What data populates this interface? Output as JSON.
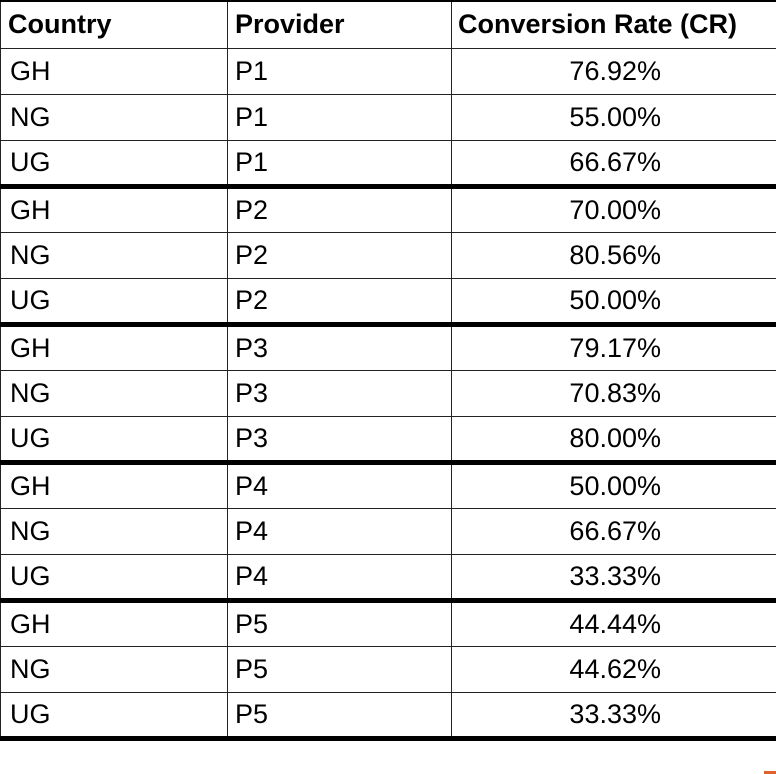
{
  "table": {
    "headers": [
      "Country",
      "Provider",
      "Conversion Rate (CR)"
    ],
    "rows": [
      {
        "country": "GH",
        "provider": "P1",
        "cr": "76.92%"
      },
      {
        "country": "NG",
        "provider": "P1",
        "cr": "55.00%"
      },
      {
        "country": "UG",
        "provider": "P1",
        "cr": "66.67%"
      },
      {
        "country": "GH",
        "provider": "P2",
        "cr": "70.00%"
      },
      {
        "country": "NG",
        "provider": "P2",
        "cr": "80.56%"
      },
      {
        "country": "UG",
        "provider": "P2",
        "cr": "50.00%"
      },
      {
        "country": "GH",
        "provider": "P3",
        "cr": "79.17%"
      },
      {
        "country": "NG",
        "provider": "P3",
        "cr": "70.83%"
      },
      {
        "country": "UG",
        "provider": "P3",
        "cr": "80.00%"
      },
      {
        "country": "GH",
        "provider": "P4",
        "cr": "50.00%"
      },
      {
        "country": "NG",
        "provider": "P4",
        "cr": "66.67%"
      },
      {
        "country": "UG",
        "provider": "P4",
        "cr": "33.33%"
      },
      {
        "country": "GH",
        "provider": "P5",
        "cr": "44.44%"
      },
      {
        "country": "NG",
        "provider": "P5",
        "cr": "44.62%"
      },
      {
        "country": "UG",
        "provider": "P5",
        "cr": "33.33%"
      }
    ]
  },
  "colors": {
    "border": "#222222",
    "group_separator": "#000000",
    "corner_accent": "#e0622c"
  }
}
